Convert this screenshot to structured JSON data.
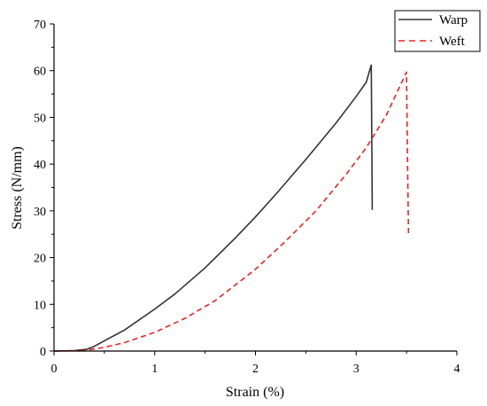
{
  "chart_data": {
    "type": "line",
    "xlabel": "Strain (%)",
    "ylabel": "Stress (N/mm)",
    "xlim": [
      0,
      4
    ],
    "ylim": [
      0,
      70
    ],
    "xticks": [
      0,
      1,
      2,
      3,
      4
    ],
    "yticks": [
      0,
      10,
      20,
      30,
      40,
      50,
      60,
      70
    ],
    "grid": false,
    "legend_position": "top-right",
    "series": [
      {
        "name": "Warp",
        "color": "#333333",
        "style": "solid",
        "x": [
          0,
          0.2,
          0.33,
          0.4,
          0.5,
          0.7,
          1.0,
          1.2,
          1.5,
          1.8,
          2.0,
          2.2,
          2.5,
          2.8,
          3.0,
          3.1,
          3.15,
          3.155,
          3.16
        ],
        "y": [
          0,
          0.1,
          0.4,
          1.0,
          2.2,
          4.5,
          9.0,
          12.2,
          17.8,
          24.2,
          28.7,
          33.5,
          41.0,
          48.8,
          54.5,
          57.5,
          61.2,
          45.0,
          30.2
        ]
      },
      {
        "name": "Weft",
        "color": "#ee2222",
        "style": "dashed",
        "x": [
          0,
          0.3,
          0.5,
          0.7,
          1.0,
          1.3,
          1.6,
          2.0,
          2.3,
          2.6,
          2.9,
          3.1,
          3.3,
          3.5,
          3.51,
          3.52
        ],
        "y": [
          0,
          0.1,
          0.8,
          1.8,
          4.0,
          7.0,
          10.8,
          17.5,
          23.5,
          30.0,
          37.8,
          43.5,
          50.5,
          59.7,
          40.0,
          24.5
        ]
      }
    ]
  }
}
